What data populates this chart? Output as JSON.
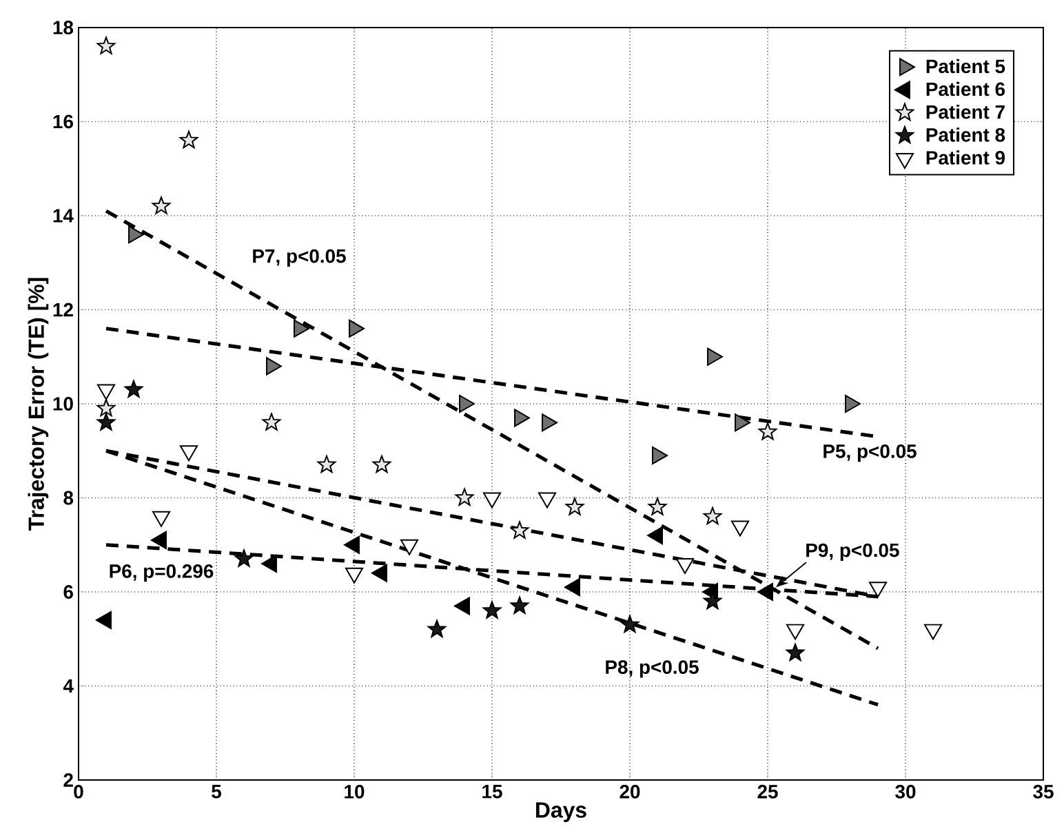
{
  "chart_data": {
    "type": "scatter",
    "xlabel": "Days",
    "ylabel": "Trajectory Error (TE) [%]",
    "xlim": [
      0,
      35
    ],
    "ylim": [
      2,
      18
    ],
    "xticks": [
      0,
      5,
      10,
      15,
      20,
      25,
      30,
      35
    ],
    "yticks": [
      2,
      4,
      6,
      8,
      10,
      12,
      14,
      16,
      18
    ],
    "grid": true,
    "legend": "top right",
    "series": [
      {
        "name": "Patient 5",
        "color": "#707070",
        "marker": "triangle-right",
        "x": [
          2,
          7,
          8,
          10,
          14,
          16,
          17,
          21,
          23,
          24,
          28
        ],
        "values": [
          13.6,
          10.8,
          11.6,
          11.6,
          10.0,
          9.7,
          9.6,
          8.9,
          11.0,
          9.6,
          10.0
        ]
      },
      {
        "name": "Patient 6",
        "color": "#000000",
        "marker": "triangle-left",
        "x": [
          1,
          3,
          7,
          10,
          11,
          14,
          18,
          21,
          23,
          25
        ],
        "values": [
          5.4,
          7.1,
          6.6,
          7.0,
          6.4,
          5.7,
          6.1,
          7.2,
          6.0,
          6.0
        ]
      },
      {
        "name": "Patient 7",
        "color": "#e6e6e6",
        "marker": "star",
        "x": [
          1,
          1,
          3,
          4,
          7,
          9,
          11,
          14,
          16,
          18,
          21,
          23,
          25
        ],
        "values": [
          17.6,
          9.9,
          14.2,
          15.6,
          9.6,
          8.7,
          8.7,
          8.0,
          7.3,
          7.8,
          7.8,
          7.6,
          9.4
        ]
      },
      {
        "name": "Patient 8",
        "color": "#1a1a1a",
        "marker": "star",
        "x": [
          1,
          2,
          6,
          13,
          15,
          16,
          20,
          23,
          26
        ],
        "values": [
          9.6,
          10.3,
          6.7,
          5.2,
          5.6,
          5.7,
          5.3,
          5.8,
          4.7
        ]
      },
      {
        "name": "Patient 9",
        "color": "#ffffff",
        "marker": "triangle-down",
        "x": [
          1,
          3,
          4,
          10,
          12,
          15,
          17,
          22,
          24,
          26,
          29,
          31
        ],
        "values": [
          10.3,
          7.6,
          9.0,
          6.4,
          7.0,
          8.0,
          8.0,
          6.6,
          7.4,
          5.2,
          6.1,
          5.2
        ]
      },
      {
        "type": "line",
        "color": "#000000",
        "marker": "none",
        "line_style": "dashed",
        "x": [
          1,
          29
        ],
        "values": [
          14.1,
          4.8
        ]
      },
      {
        "type": "line",
        "color": "#000000",
        "marker": "none",
        "line_style": "dashed",
        "x": [
          1,
          29
        ],
        "values": [
          11.6,
          9.3
        ]
      },
      {
        "type": "line",
        "color": "#000000",
        "marker": "none",
        "line_style": "dashed",
        "x": [
          1,
          29
        ],
        "values": [
          9.0,
          5.9
        ]
      },
      {
        "type": "line",
        "color": "#000000",
        "marker": "none",
        "line_style": "dashed",
        "x": [
          1,
          29
        ],
        "values": [
          9.0,
          3.6
        ]
      },
      {
        "type": "line",
        "color": "#000000",
        "marker": "none",
        "line_style": "dashed",
        "x": [
          1,
          29
        ],
        "values": [
          7.0,
          5.9
        ]
      }
    ],
    "annotations": [
      "P7, p<0.05",
      "P5, p<0.05",
      {
        "text": "P9, p<0.05",
        "x": 25.3,
        "y": 6.1
      },
      "P6, p=0.296",
      "P8, p<0.05"
    ]
  }
}
